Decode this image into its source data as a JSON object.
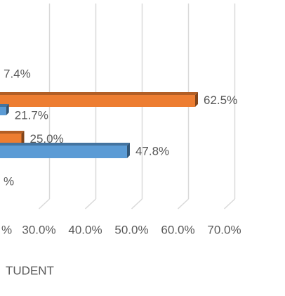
{
  "chart_data": {
    "type": "bar3d_horizontal",
    "x_label": "TUDENT",
    "series": [
      {
        "color": "#ED7D31",
        "values": [
          62.5,
          25.0
        ],
        "value_labels": [
          "62.5%",
          "25.0%"
        ]
      },
      {
        "color": "#5B9BD5",
        "values": [
          21.7,
          47.8
        ],
        "value_labels": [
          "21.7%",
          "47.8%"
        ]
      }
    ],
    "xlim": [
      0,
      70
    ],
    "xticks": [
      {
        "value": 30,
        "label": "30.0%"
      },
      {
        "value": 40,
        "label": "40.0%"
      },
      {
        "value": 50,
        "label": "50.0%"
      },
      {
        "value": 60,
        "label": "60.0%"
      },
      {
        "value": 70,
        "label": "70.0%"
      }
    ],
    "annotations": [
      "7.4%",
      "%",
      "%"
    ],
    "grid": true
  }
}
